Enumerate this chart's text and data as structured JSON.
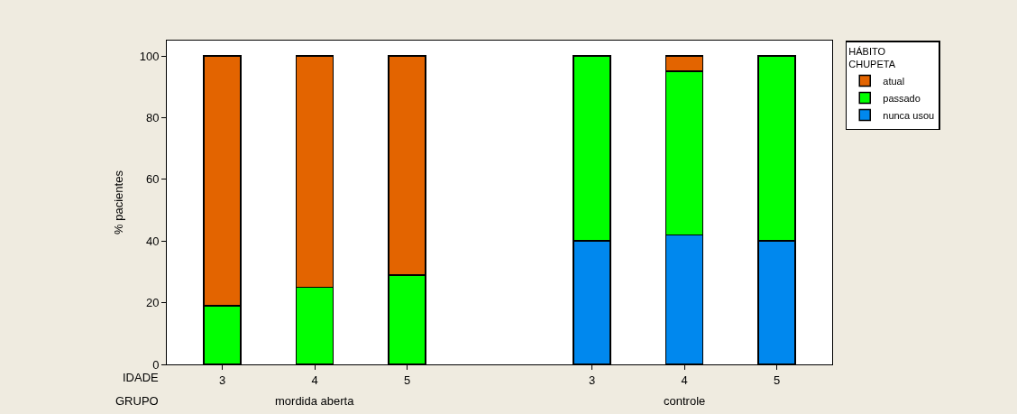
{
  "chart_data": {
    "type": "bar",
    "stacked": true,
    "ylabel": "% pacientes",
    "legend_title": "HÁBITO\nCHUPETA",
    "legend": "top right",
    "categories": [
      "3",
      "4",
      "5",
      null,
      "3",
      "4",
      "5"
    ],
    "series": [
      {
        "name": "nunca usou",
        "color": "#0088ee",
        "values": [
          null,
          null,
          null,
          null,
          40,
          42,
          40
        ]
      },
      {
        "name": "passado",
        "color": "#00ff00",
        "values": [
          19,
          25,
          29,
          null,
          60,
          53,
          60
        ]
      },
      {
        "name": "atual",
        "color": "#e36400",
        "values": [
          81,
          75,
          71,
          null,
          null,
          5,
          null
        ]
      }
    ],
    "ylim": [
      0,
      105
    ],
    "yticks": [
      0,
      20,
      40,
      60,
      80,
      100
    ],
    "annotations": [
      "IDADE",
      "GRUPO",
      "mordida aberta",
      "controle"
    ]
  }
}
